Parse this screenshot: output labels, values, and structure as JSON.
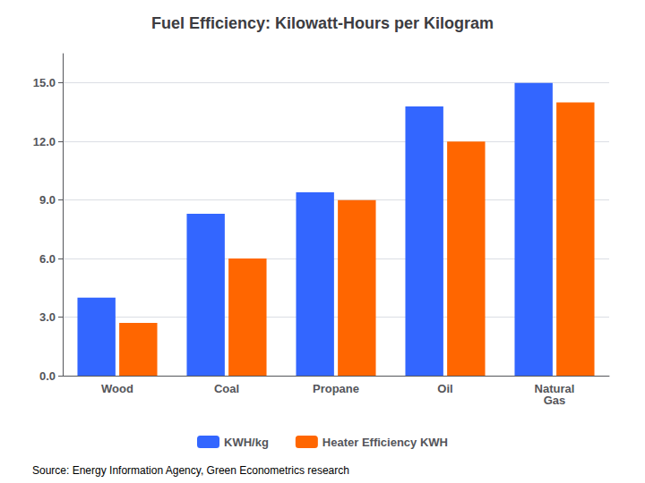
{
  "chart_data": {
    "type": "bar",
    "title": "Fuel Efficiency: Kilowatt-Hours per Kilogram",
    "categories": [
      "Wood",
      "Coal",
      "Propane",
      "Oil",
      "Natural\nGas"
    ],
    "series": [
      {
        "name": "KWH/kg",
        "color": "#3366FF",
        "values": [
          4.0,
          8.3,
          9.4,
          13.8,
          15.0
        ]
      },
      {
        "name": "Heater Efficiency KWH",
        "color": "#FF6600",
        "values": [
          2.7,
          6.0,
          9.0,
          12.0,
          14.0
        ]
      }
    ],
    "ylim": [
      0,
      16.5
    ],
    "yticks": [
      {
        "value": 0,
        "label": "0.0"
      },
      {
        "value": 3,
        "label": "3.0"
      },
      {
        "value": 6,
        "label": "6.0"
      },
      {
        "value": 9,
        "label": "9.0"
      },
      {
        "value": 12,
        "label": "12.0"
      },
      {
        "value": 15,
        "label": "15.0"
      }
    ],
    "grid": true,
    "legend": "bottom",
    "annotations": [
      "Source: Energy Information Agency, Green Econometrics research"
    ]
  }
}
